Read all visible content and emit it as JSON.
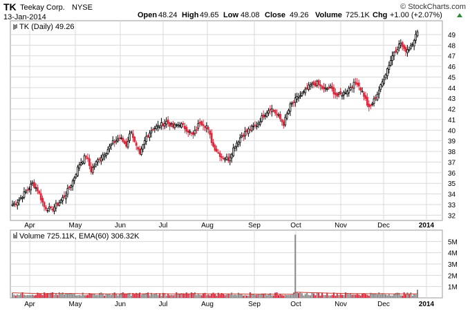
{
  "header": {
    "symbol": "TK",
    "company": "Teekay Corp.",
    "exchange": "NYSE",
    "date": "13-Jan-2014",
    "open_label": "Open",
    "open": "48.24",
    "high_label": "High",
    "high": "49.65",
    "low_label": "Low",
    "low": "48.08",
    "close_label": "Close",
    "close": "49.26",
    "volume_label": "Volume",
    "volume": "725.1K",
    "chg_label": "Chg",
    "chg": "+1.00 (+2.07%)",
    "copyright": "© StockCharts.com"
  },
  "price_legend": "TK (Daily) 49.26",
  "volume_legend": "Volume 725.11K, EMA(60) 306.32K",
  "colors": {
    "up": "#000000",
    "down": "#e0263a",
    "grid": "#d9d9d9",
    "volume_bar": "#8a8a8a",
    "ema": "#c0392b"
  },
  "chart_data": [
    {
      "type": "candlestick",
      "title": "TK (Daily) 49.26",
      "x_labels": [
        "Apr",
        "May",
        "Jun",
        "Jul",
        "Aug",
        "Sep",
        "Oct",
        "Nov",
        "Dec",
        "2014"
      ],
      "ylim": [
        31.5,
        50.3
      ],
      "y_ticks": [
        32,
        33,
        34,
        35,
        36,
        37,
        38,
        39,
        40,
        41,
        42,
        43,
        44,
        45,
        46,
        47,
        48,
        49
      ],
      "grid": true,
      "close_anchors": [
        [
          0,
          33.0
        ],
        [
          3,
          33.3
        ],
        [
          8,
          34.2
        ],
        [
          12,
          35.0
        ],
        [
          15,
          34.4
        ],
        [
          19,
          32.8
        ],
        [
          23,
          32.5
        ],
        [
          28,
          33.2
        ],
        [
          32,
          34.0
        ],
        [
          36,
          35.2
        ],
        [
          40,
          36.8
        ],
        [
          44,
          37.6
        ],
        [
          47,
          36.2
        ],
        [
          52,
          37.4
        ],
        [
          56,
          38.0
        ],
        [
          60,
          38.8
        ],
        [
          64,
          39.3
        ],
        [
          68,
          38.6
        ],
        [
          71,
          40.0
        ],
        [
          73,
          38.8
        ],
        [
          76,
          37.6
        ],
        [
          80,
          39.4
        ],
        [
          84,
          40.2
        ],
        [
          88,
          40.4
        ],
        [
          92,
          40.8
        ],
        [
          96,
          40.3
        ],
        [
          100,
          40.6
        ],
        [
          104,
          40.1
        ],
        [
          108,
          39.5
        ],
        [
          112,
          40.8
        ],
        [
          116,
          40.4
        ],
        [
          120,
          38.5
        ],
        [
          125,
          37.5
        ],
        [
          129,
          37.3
        ],
        [
          133,
          38.6
        ],
        [
          137,
          39.5
        ],
        [
          141,
          40.0
        ],
        [
          146,
          40.5
        ],
        [
          150,
          41.4
        ],
        [
          154,
          42.1
        ],
        [
          158,
          41.5
        ],
        [
          162,
          40.6
        ],
        [
          166,
          42.3
        ],
        [
          170,
          43.0
        ],
        [
          174,
          43.5
        ],
        [
          178,
          44.2
        ],
        [
          182,
          44.4
        ],
        [
          186,
          43.8
        ],
        [
          190,
          44.0
        ],
        [
          194,
          43.2
        ],
        [
          198,
          43.5
        ],
        [
          202,
          44.1
        ],
        [
          206,
          44.5
        ],
        [
          210,
          43.3
        ],
        [
          213,
          42.0
        ],
        [
          216,
          42.8
        ],
        [
          220,
          44.1
        ],
        [
          224,
          45.8
        ],
        [
          228,
          47.4
        ],
        [
          232,
          48.2
        ],
        [
          234,
          47.5
        ],
        [
          237,
          47.7
        ],
        [
          240,
          48.6
        ],
        [
          242,
          49.26
        ]
      ]
    },
    {
      "type": "bar",
      "title": "Volume 725.11K, EMA(60) 306.32K",
      "x_labels": [
        "Apr",
        "May",
        "Jun",
        "Jul",
        "Aug",
        "Sep",
        "Oct",
        "Nov",
        "Dec",
        "2014"
      ],
      "ylim": [
        0,
        6000000
      ],
      "y_ticks": [
        "1M",
        "2M",
        "3M",
        "4M",
        "5M"
      ],
      "volume_spike": {
        "index": 169,
        "value": 5600000
      },
      "last_volume": 725110,
      "ema60": 306320
    }
  ]
}
